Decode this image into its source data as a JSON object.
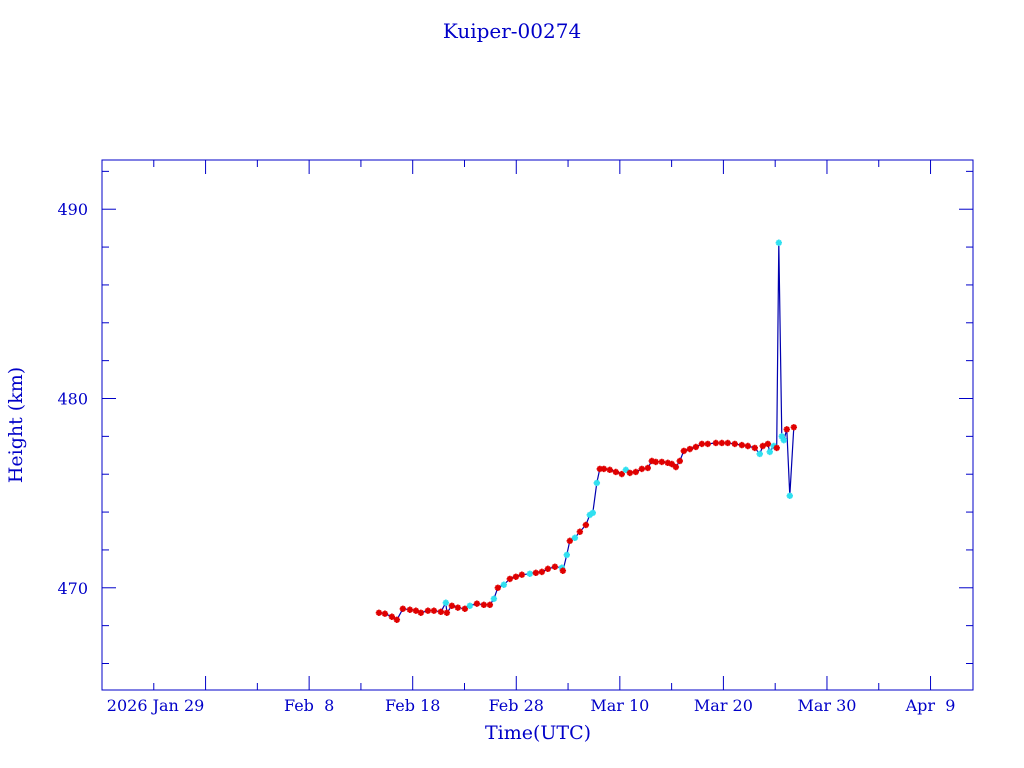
{
  "chart_data": {
    "type": "scatter",
    "title": "Kuiper-00274",
    "xlabel": "Time(UTC)",
    "ylabel": "Height (km)",
    "x_units": "days since 2026 Jan 19 (UTC)",
    "xlim": [
      0,
      84.1
    ],
    "ylim": [
      464.6,
      492.6
    ],
    "x_ticks": [
      {
        "value": 10,
        "label": "2026 Jan 29"
      },
      {
        "value": 20,
        "label": "Feb  8"
      },
      {
        "value": 30,
        "label": "Feb 18"
      },
      {
        "value": 40,
        "label": "Feb 28"
      },
      {
        "value": 50,
        "label": "Mar 10"
      },
      {
        "value": 60,
        "label": "Mar 20"
      },
      {
        "value": 70,
        "label": "Mar 30"
      },
      {
        "value": 80,
        "label": "Apr  9"
      }
    ],
    "x_minor_step": 5,
    "y_ticks": [
      {
        "value": 470,
        "label": "470"
      },
      {
        "value": 480,
        "label": "480"
      },
      {
        "value": 490,
        "label": "490"
      }
    ],
    "y_minor_step": 2,
    "grid": false,
    "colors": {
      "axis": "#0000c8",
      "line": "#0000b0",
      "red": "#e00000",
      "cyan": "#30e0f0"
    },
    "points": [
      [
        26.74,
        468.68,
        "r"
      ],
      [
        27.32,
        468.63,
        "r"
      ],
      [
        27.99,
        468.47,
        "r"
      ],
      [
        28.47,
        468.31,
        "r"
      ],
      [
        29.05,
        468.89,
        "r"
      ],
      [
        29.73,
        468.84,
        "r"
      ],
      [
        30.31,
        468.79,
        "r"
      ],
      [
        30.79,
        468.68,
        "r"
      ],
      [
        31.47,
        468.79,
        "r"
      ],
      [
        32.05,
        468.79,
        "r"
      ],
      [
        32.72,
        468.73,
        "r"
      ],
      [
        33.2,
        469.21,
        "c"
      ],
      [
        33.3,
        468.68,
        "r"
      ],
      [
        33.78,
        469.05,
        "r"
      ],
      [
        34.36,
        468.95,
        "r"
      ],
      [
        35.04,
        468.89,
        "r"
      ],
      [
        35.52,
        469.05,
        "c"
      ],
      [
        36.2,
        469.16,
        "r"
      ],
      [
        36.87,
        469.1,
        "r"
      ],
      [
        37.45,
        469.1,
        "r"
      ],
      [
        37.84,
        469.42,
        "c"
      ],
      [
        38.22,
        470.0,
        "r"
      ],
      [
        38.8,
        470.16,
        "c"
      ],
      [
        39.38,
        470.47,
        "r"
      ],
      [
        39.96,
        470.58,
        "r"
      ],
      [
        40.54,
        470.69,
        "r"
      ],
      [
        41.31,
        470.74,
        "c"
      ],
      [
        41.89,
        470.79,
        "r"
      ],
      [
        42.47,
        470.84,
        "r"
      ],
      [
        43.05,
        471.0,
        "r"
      ],
      [
        43.73,
        471.11,
        "r"
      ],
      [
        44.4,
        471.06,
        "c"
      ],
      [
        44.5,
        470.9,
        "r"
      ],
      [
        44.88,
        471.74,
        "c"
      ],
      [
        45.17,
        472.48,
        "r"
      ],
      [
        45.66,
        472.64,
        "c"
      ],
      [
        46.14,
        472.96,
        "r"
      ],
      [
        46.72,
        473.32,
        "r"
      ],
      [
        47.1,
        473.85,
        "c"
      ],
      [
        47.39,
        473.96,
        "c"
      ],
      [
        47.78,
        475.54,
        "c"
      ],
      [
        48.07,
        476.28,
        "r"
      ],
      [
        48.46,
        476.28,
        "r"
      ],
      [
        49.03,
        476.23,
        "r"
      ],
      [
        49.61,
        476.12,
        "r"
      ],
      [
        50.19,
        476.01,
        "r"
      ],
      [
        50.58,
        476.23,
        "c"
      ],
      [
        50.97,
        476.07,
        "r"
      ],
      [
        51.54,
        476.12,
        "r"
      ],
      [
        52.12,
        476.28,
        "r"
      ],
      [
        52.7,
        476.33,
        "r"
      ],
      [
        53.09,
        476.7,
        "r"
      ],
      [
        53.47,
        476.65,
        "r"
      ],
      [
        54.05,
        476.65,
        "r"
      ],
      [
        54.63,
        476.6,
        "r"
      ],
      [
        55.02,
        476.54,
        "r"
      ],
      [
        55.41,
        476.38,
        "r"
      ],
      [
        55.79,
        476.7,
        "r"
      ],
      [
        56.18,
        477.23,
        "r"
      ],
      [
        56.76,
        477.33,
        "r"
      ],
      [
        57.34,
        477.44,
        "r"
      ],
      [
        57.92,
        477.6,
        "r"
      ],
      [
        58.49,
        477.6,
        "r"
      ],
      [
        59.27,
        477.65,
        "r"
      ],
      [
        59.85,
        477.65,
        "r"
      ],
      [
        60.42,
        477.65,
        "r"
      ],
      [
        61.1,
        477.6,
        "r"
      ],
      [
        61.78,
        477.54,
        "r"
      ],
      [
        62.36,
        477.49,
        "r"
      ],
      [
        63.03,
        477.39,
        "r"
      ],
      [
        63.51,
        477.07,
        "c"
      ],
      [
        63.8,
        477.49,
        "r"
      ],
      [
        64.29,
        477.6,
        "r"
      ],
      [
        64.48,
        477.18,
        "c"
      ],
      [
        64.86,
        477.49,
        "c"
      ],
      [
        65.15,
        477.39,
        "r"
      ],
      [
        65.35,
        488.23,
        "c"
      ],
      [
        65.64,
        478.0,
        "c"
      ],
      [
        65.83,
        477.8,
        "c"
      ],
      [
        66.12,
        478.37,
        "r"
      ],
      [
        66.41,
        474.86,
        "c"
      ],
      [
        66.8,
        478.48,
        "r"
      ]
    ]
  }
}
